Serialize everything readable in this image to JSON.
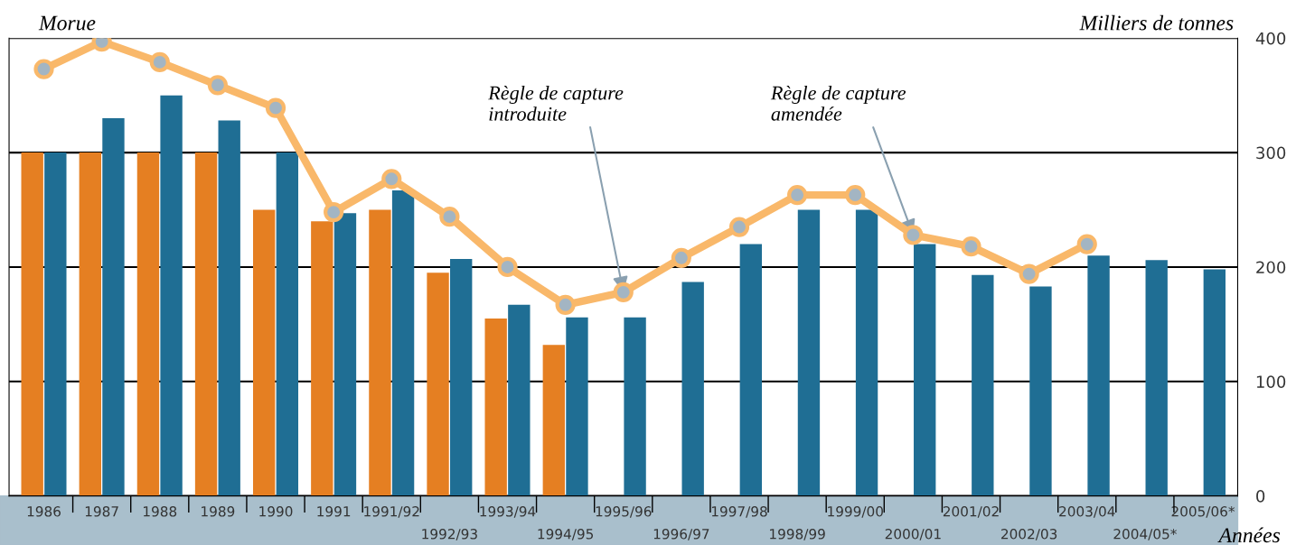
{
  "chart_data": {
    "type": "bar",
    "title": "Morue",
    "ylabel": "Milliers de tonnes",
    "xlabel": "Années",
    "categories": [
      "1986",
      "1987",
      "1988",
      "1989",
      "1990",
      "1991",
      "1991/92",
      "1992/93",
      "1993/94",
      "1994/95",
      "1995/96",
      "1996/97",
      "1997/98",
      "1998/99",
      "1999/00",
      "2000/01",
      "2001/02",
      "2002/03",
      "2003/04",
      "2004/05*",
      "2005/06*"
    ],
    "series": [
      {
        "color": "#e57f22",
        "values": [
          300,
          300,
          300,
          300,
          250,
          240,
          250,
          195,
          155,
          132,
          null,
          null,
          null,
          null,
          null,
          null,
          null,
          null,
          null,
          null,
          null
        ]
      },
      {
        "color": "#1f6e94",
        "values": [
          300,
          330,
          350,
          328,
          300,
          247,
          267,
          207,
          167,
          156,
          156,
          187,
          220,
          250,
          250,
          220,
          193,
          183,
          210,
          206,
          198
        ]
      },
      {
        "type": "line",
        "color": "#f9b86a",
        "marker": "circle",
        "line_style": "solid",
        "values": [
          373,
          397,
          379,
          359,
          339,
          248,
          277,
          244,
          200,
          167,
          178,
          208,
          235,
          263,
          263,
          228,
          218,
          194,
          220,
          null,
          null
        ]
      }
    ],
    "ylim": [
      0,
      400
    ],
    "yticks": [
      0,
      100,
      200,
      300,
      400
    ],
    "grid": "y",
    "legend": false,
    "annotations": [
      {
        "text": "Règle de capture\nintroduite",
        "x": "1995/96",
        "y": 178
      },
      {
        "text": "Règle de capture\namendée",
        "x": "2000/01",
        "y": 228
      }
    ]
  }
}
